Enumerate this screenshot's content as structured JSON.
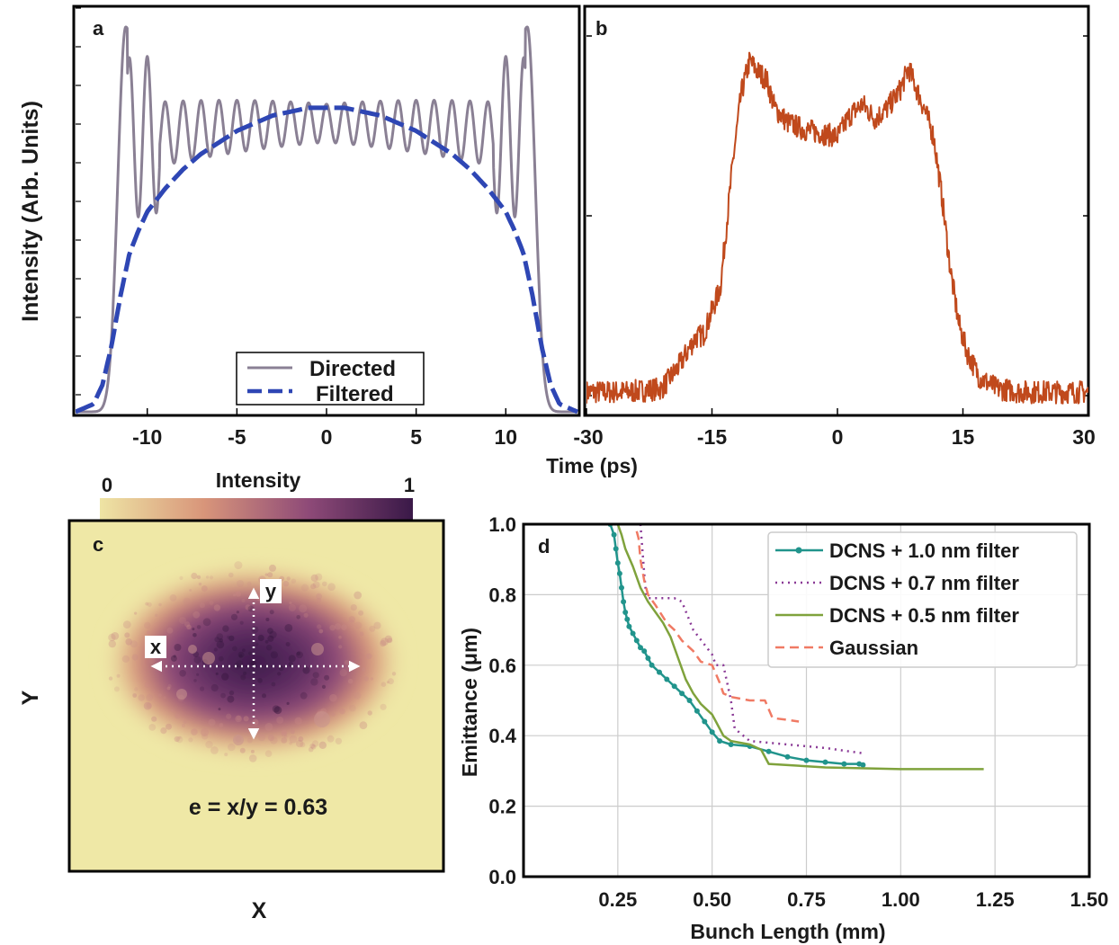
{
  "chart_data": [
    {
      "panel": "a",
      "type": "line",
      "ylabel": "Intensity (Arb. Units)",
      "xlim": [
        -14,
        14
      ],
      "xticks": [
        -10,
        -5,
        0,
        5,
        10
      ],
      "legend": {
        "placement": "bottom-right"
      },
      "series": [
        {
          "name": "Directed",
          "color": "#8a8094",
          "style": "solid",
          "profile": {
            "fringe_x_range": [
              -11.1,
              11.1
            ],
            "mean_level": 0.71,
            "fringe_amplitude": 0.09,
            "edge_peak_x": [
              -11.2,
              11.2
            ],
            "edge_peak_y": 1.0,
            "edge_rolloff_x": 12.5
          }
        },
        {
          "name": "Filtered",
          "color": "#2e46b4",
          "style": "dashed",
          "x": [
            -14,
            -13,
            -12.5,
            -12,
            -11.5,
            -11,
            -10.5,
            -10,
            -9,
            -8,
            -7,
            -6,
            -5,
            -4,
            -3,
            -2,
            -1,
            0,
            1,
            2,
            3,
            4,
            5,
            6,
            7,
            8,
            9,
            10,
            10.5,
            11,
            11.5,
            12,
            12.5,
            13,
            14
          ],
          "y": [
            0.0,
            0.02,
            0.07,
            0.17,
            0.3,
            0.41,
            0.47,
            0.52,
            0.58,
            0.63,
            0.67,
            0.7,
            0.73,
            0.75,
            0.77,
            0.78,
            0.79,
            0.79,
            0.79,
            0.78,
            0.77,
            0.75,
            0.73,
            0.7,
            0.67,
            0.63,
            0.58,
            0.52,
            0.47,
            0.41,
            0.3,
            0.17,
            0.07,
            0.02,
            0.0
          ]
        }
      ]
    },
    {
      "panel": "b",
      "type": "line",
      "xlabel": "Time (ps)",
      "xlim": [
        -30,
        30
      ],
      "xticks": [
        -30,
        -15,
        0,
        15,
        30
      ],
      "series": [
        {
          "color": "#c0491c",
          "x": [
            -30,
            -25,
            -21,
            -19,
            -17,
            -16,
            -14,
            -12.5,
            -11.5,
            -10.5,
            -9.5,
            -8.5,
            -7.5,
            -6,
            -4,
            -2,
            0,
            1.5,
            3,
            4.5,
            6,
            7.5,
            8.5,
            9.5,
            10.5,
            11.5,
            12.5,
            13.5,
            14.5,
            15.5,
            17,
            19,
            22,
            25,
            30
          ],
          "y": [
            0.01,
            0.01,
            0.02,
            0.08,
            0.16,
            0.17,
            0.3,
            0.65,
            0.84,
            0.93,
            0.9,
            0.88,
            0.8,
            0.76,
            0.74,
            0.73,
            0.72,
            0.78,
            0.81,
            0.77,
            0.8,
            0.85,
            0.91,
            0.85,
            0.79,
            0.72,
            0.55,
            0.35,
            0.2,
            0.12,
            0.05,
            0.02,
            0.01,
            0.01,
            0.01
          ],
          "noise_amplitude": 0.02
        }
      ]
    },
    {
      "panel": "c",
      "type": "heatmap",
      "xlabel": "X",
      "ylabel": "Y",
      "colorbar": {
        "label": "Intensity",
        "min_label": "0",
        "max_label": "1",
        "colors": [
          "#eee4a4",
          "#d8957a",
          "#8e4a78",
          "#3a1948"
        ]
      },
      "arrow_labels": {
        "x": "x",
        "y": "y"
      },
      "annotation": "e = x/y = 0.63"
    },
    {
      "panel": "d",
      "type": "line",
      "xlabel": "Bunch Length (mm)",
      "ylabel": "Emittance (μm)",
      "xlim": [
        0.0,
        1.5
      ],
      "ylim": [
        0.0,
        1.0
      ],
      "xticks": [
        0.25,
        0.5,
        0.75,
        1.0,
        1.25,
        1.5
      ],
      "xtick_labels": [
        "0.25",
        "0.50",
        "0.75",
        "1.00",
        "1.25",
        "1.50"
      ],
      "yticks": [
        0.0,
        0.2,
        0.4,
        0.6,
        0.8,
        1.0
      ],
      "ytick_labels": [
        "0.0",
        "0.2",
        "0.4",
        "0.6",
        "0.8",
        "1.0"
      ],
      "grid": true,
      "legend": {
        "placement": "top-right"
      },
      "series": [
        {
          "name": "DCNS + 1.0 nm filter",
          "color": "#21948c",
          "style": "solid-markers",
          "x": [
            0.23,
            0.24,
            0.245,
            0.25,
            0.255,
            0.26,
            0.265,
            0.27,
            0.275,
            0.28,
            0.29,
            0.3,
            0.31,
            0.32,
            0.33,
            0.34,
            0.36,
            0.38,
            0.4,
            0.42,
            0.44,
            0.46,
            0.48,
            0.5,
            0.52,
            0.55,
            0.6,
            0.65,
            0.7,
            0.75,
            0.8,
            0.85,
            0.89,
            0.9
          ],
          "y": [
            1.0,
            0.97,
            0.93,
            0.89,
            0.86,
            0.82,
            0.78,
            0.75,
            0.73,
            0.71,
            0.69,
            0.67,
            0.65,
            0.64,
            0.62,
            0.6,
            0.58,
            0.56,
            0.54,
            0.52,
            0.5,
            0.47,
            0.44,
            0.41,
            0.385,
            0.375,
            0.37,
            0.355,
            0.34,
            0.33,
            0.325,
            0.32,
            0.32,
            0.317
          ]
        },
        {
          "name": "DCNS + 0.7 nm filter",
          "color": "#8a3a96",
          "style": "dotted",
          "x": [
            0.31,
            0.315,
            0.32,
            0.325,
            0.33,
            0.4,
            0.42,
            0.45,
            0.5,
            0.51,
            0.53,
            0.55,
            0.56,
            0.6,
            0.7,
            0.8,
            0.9
          ],
          "y": [
            1.0,
            0.93,
            0.86,
            0.8,
            0.79,
            0.79,
            0.78,
            0.7,
            0.63,
            0.6,
            0.6,
            0.5,
            0.42,
            0.385,
            0.375,
            0.365,
            0.35
          ]
        },
        {
          "name": "DCNS + 0.5 nm filter",
          "color": "#7fa23c",
          "style": "solid",
          "x": [
            0.25,
            0.26,
            0.27,
            0.29,
            0.31,
            0.33,
            0.35,
            0.37,
            0.39,
            0.41,
            0.43,
            0.45,
            0.47,
            0.49,
            0.5,
            0.51,
            0.53,
            0.55,
            0.6,
            0.63,
            0.65,
            0.8,
            1.0,
            1.22
          ],
          "y": [
            1.0,
            0.97,
            0.93,
            0.88,
            0.82,
            0.78,
            0.75,
            0.72,
            0.68,
            0.62,
            0.56,
            0.52,
            0.49,
            0.47,
            0.46,
            0.44,
            0.4,
            0.385,
            0.375,
            0.36,
            0.32,
            0.31,
            0.305,
            0.305
          ]
        },
        {
          "name": "Gaussian",
          "color": "#f07a64",
          "style": "dashed",
          "x": [
            0.3,
            0.305,
            0.31,
            0.32,
            0.33,
            0.35,
            0.38,
            0.4,
            0.42,
            0.45,
            0.47,
            0.5,
            0.52,
            0.53,
            0.55,
            0.6,
            0.64,
            0.66,
            0.7,
            0.73
          ],
          "y": [
            0.98,
            0.96,
            0.9,
            0.84,
            0.8,
            0.77,
            0.72,
            0.7,
            0.67,
            0.64,
            0.61,
            0.6,
            0.55,
            0.52,
            0.51,
            0.5,
            0.5,
            0.45,
            0.445,
            0.44
          ]
        }
      ]
    }
  ],
  "panel_labels": {
    "a": "a",
    "b": "b",
    "c": "c",
    "d": "d"
  }
}
